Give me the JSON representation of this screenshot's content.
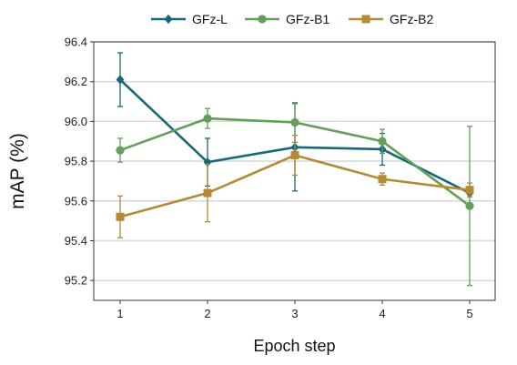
{
  "chart_data": {
    "type": "line",
    "title": "",
    "xlabel": "Epoch step",
    "ylabel": "mAP (%)",
    "x": [
      1,
      2,
      3,
      4,
      5
    ],
    "xticks": [
      "1",
      "2",
      "3",
      "4",
      "5"
    ],
    "ylim": [
      95.1,
      96.4
    ],
    "yticks": [
      "95.2",
      "95.4",
      "95.6",
      "95.8",
      "96.0",
      "96.2",
      "96.4"
    ],
    "grid": "horizontal",
    "legend_position": "top",
    "series": [
      {
        "name": "GFz-L",
        "color": "#16687a",
        "marker": "diamond",
        "values": [
          96.21,
          95.795,
          95.87,
          95.86,
          95.64
        ],
        "error": [
          0.135,
          0.12,
          0.22,
          0.08,
          0.02
        ]
      },
      {
        "name": "GFz-B1",
        "color": "#62a05a",
        "marker": "circle",
        "values": [
          95.855,
          96.015,
          95.995,
          95.9,
          95.575
        ],
        "error": [
          0.06,
          0.05,
          0.1,
          0.06,
          0.4
        ]
      },
      {
        "name": "GFz-B2",
        "color": "#b48a32",
        "marker": "square",
        "values": [
          95.52,
          95.64,
          95.83,
          95.71,
          95.655
        ],
        "error": [
          0.105,
          0.145,
          0.1,
          0.03,
          0.035
        ]
      }
    ]
  }
}
